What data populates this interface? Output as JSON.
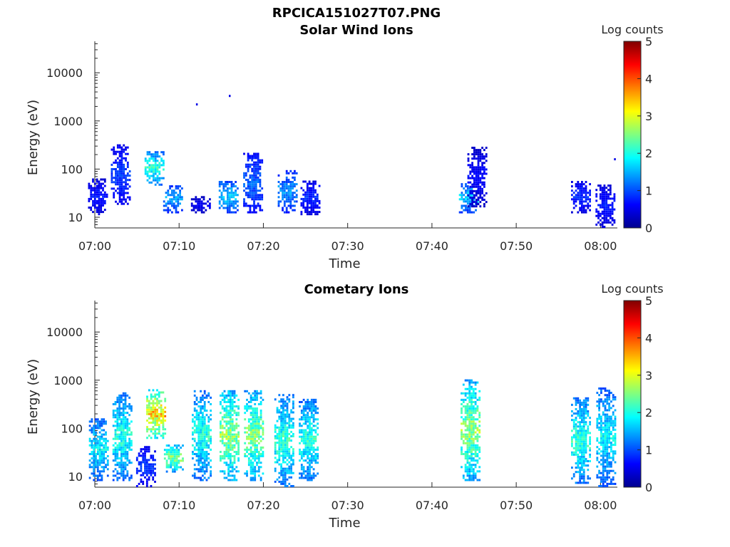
{
  "figure_title": "RPCICA151027T07.PNG",
  "chart_data": [
    {
      "type": "heatmap",
      "title": "Solar Wind Ions",
      "xlabel": "Time",
      "ylabel": "Energy (eV)",
      "y_scale": "log",
      "ylim": [
        6,
        45000
      ],
      "xlim": [
        "07:00",
        "08:02"
      ],
      "x_ticks": [
        "07:00",
        "07:10",
        "07:20",
        "07:30",
        "07:40",
        "07:50",
        "08:00"
      ],
      "y_ticks": [
        "10",
        "100",
        "1000",
        "10000"
      ],
      "colorbar": {
        "label": "Log counts",
        "ticks": [
          "0",
          "1",
          "2",
          "3",
          "4",
          "5"
        ],
        "range": [
          0,
          5
        ],
        "colormap": "jet"
      },
      "clusters": [
        {
          "t": 0.3,
          "e_lo": 11,
          "e_hi": 60,
          "level": 0.8
        },
        {
          "t": 3.0,
          "e_lo": 18,
          "e_hi": 300,
          "level": 1.0
        },
        {
          "t": 7.0,
          "e_lo": 45,
          "e_hi": 230,
          "level": 2.3
        },
        {
          "t": 9.2,
          "e_lo": 12,
          "e_hi": 45,
          "level": 1.6
        },
        {
          "t": 12.5,
          "e_lo": 12,
          "e_hi": 25,
          "level": 0.6
        },
        {
          "t": 15.8,
          "e_lo": 12,
          "e_hi": 55,
          "level": 1.8
        },
        {
          "t": 18.7,
          "e_lo": 12,
          "e_hi": 200,
          "level": 1.2
        },
        {
          "t": 22.8,
          "e_lo": 12,
          "e_hi": 90,
          "level": 1.5
        },
        {
          "t": 25.5,
          "e_lo": 11,
          "e_hi": 55,
          "level": 0.9
        },
        {
          "t": 44.3,
          "e_lo": 12,
          "e_hi": 50,
          "level": 1.8
        },
        {
          "t": 45.3,
          "e_lo": 16,
          "e_hi": 280,
          "level": 0.7
        },
        {
          "t": 57.6,
          "e_lo": 12,
          "e_hi": 55,
          "level": 0.9
        },
        {
          "t": 60.5,
          "e_lo": 6,
          "e_hi": 45,
          "level": 0.8
        }
      ],
      "points": [
        {
          "t": 12.0,
          "e": 2200,
          "level": 0.5
        },
        {
          "t": 15.9,
          "e": 3300,
          "level": 0.5
        },
        {
          "t": 61.6,
          "e": 160,
          "level": 0.5
        }
      ]
    },
    {
      "type": "heatmap",
      "title": "Cometary Ions",
      "xlabel": "Time",
      "ylabel": "Energy (eV)",
      "y_scale": "log",
      "ylim": [
        6,
        45000
      ],
      "xlim": [
        "07:00",
        "08:02"
      ],
      "x_ticks": [
        "07:00",
        "07:10",
        "07:20",
        "07:30",
        "07:40",
        "07:50",
        "08:00"
      ],
      "y_ticks": [
        "10",
        "100",
        "1000",
        "10000"
      ],
      "colorbar": {
        "label": "Log counts",
        "ticks": [
          "0",
          "1",
          "2",
          "3",
          "4",
          "5"
        ],
        "range": [
          0,
          5
        ],
        "colormap": "jet"
      },
      "clusters": [
        {
          "t": 0.4,
          "e_lo": 8,
          "e_hi": 150,
          "level": 2.0
        },
        {
          "t": 3.2,
          "e_lo": 8,
          "e_hi": 550,
          "level": 2.2
        },
        {
          "t": 6.0,
          "e_lo": 6,
          "e_hi": 40,
          "level": 1.0
        },
        {
          "t": 7.2,
          "e_lo": 60,
          "e_hi": 600,
          "level": 3.7
        },
        {
          "t": 9.3,
          "e_lo": 12,
          "e_hi": 45,
          "level": 2.8
        },
        {
          "t": 12.6,
          "e_lo": 8,
          "e_hi": 600,
          "level": 2.2
        },
        {
          "t": 15.9,
          "e_lo": 8,
          "e_hi": 600,
          "level": 2.8
        },
        {
          "t": 18.8,
          "e_lo": 8,
          "e_hi": 600,
          "level": 2.7
        },
        {
          "t": 22.4,
          "e_lo": 6,
          "e_hi": 500,
          "level": 2.3
        },
        {
          "t": 25.3,
          "e_lo": 8,
          "e_hi": 400,
          "level": 2.2
        },
        {
          "t": 44.5,
          "e_lo": 8,
          "e_hi": 1000,
          "level": 2.8
        },
        {
          "t": 57.6,
          "e_lo": 7,
          "e_hi": 400,
          "level": 2.3
        },
        {
          "t": 60.6,
          "e_lo": 6,
          "e_hi": 700,
          "level": 2.0
        }
      ],
      "points": []
    }
  ]
}
